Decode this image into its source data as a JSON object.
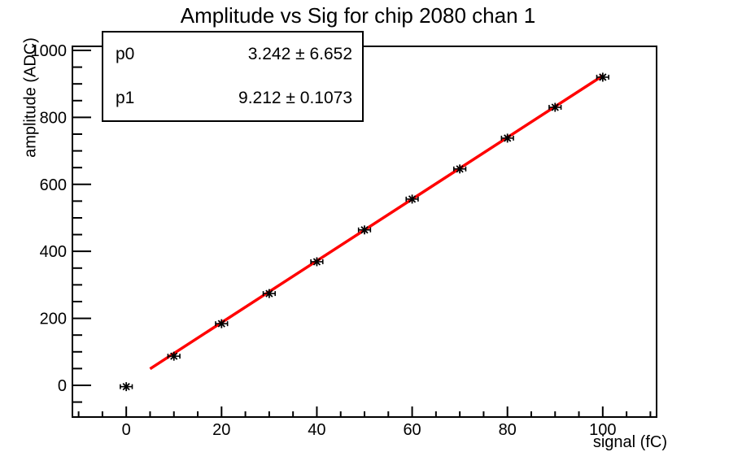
{
  "stats_box": {
    "rows": [
      {
        "param": "p0",
        "value": "3.242 ± 6.652"
      },
      {
        "param": "p1",
        "value": "9.212 ± 0.1073"
      }
    ]
  },
  "chart_data": {
    "type": "scatter",
    "title": "Amplitude vs Sig for chip 2080 chan 1",
    "xlabel": "signal (fC)",
    "ylabel": "amplitude (ADC)",
    "x": [
      0,
      10,
      20,
      30,
      40,
      50,
      60,
      70,
      80,
      90,
      100
    ],
    "y": [
      -4,
      87,
      184,
      274,
      369,
      464,
      556,
      646,
      738,
      830,
      920
    ],
    "x_error": 1.25,
    "marker": "star",
    "marker_color": "#000000",
    "fit": {
      "type": "linear",
      "p0": 3.242,
      "p0_error": 6.652,
      "p1": 9.212,
      "p1_error": 0.1073,
      "range": [
        5,
        100
      ],
      "color": "#ff0000"
    },
    "xlim": [
      -11.3,
      111.3
    ],
    "ylim": [
      -94.7,
      1012.1
    ],
    "x_major_ticks": [
      0,
      20,
      40,
      60,
      80,
      100
    ],
    "y_major_ticks": [
      0,
      200,
      400,
      600,
      800,
      1000
    ],
    "x_minor_step": 5,
    "y_minor_step": 50,
    "grid": false,
    "frame_color": "#000000",
    "background_color": "#ffffff"
  }
}
